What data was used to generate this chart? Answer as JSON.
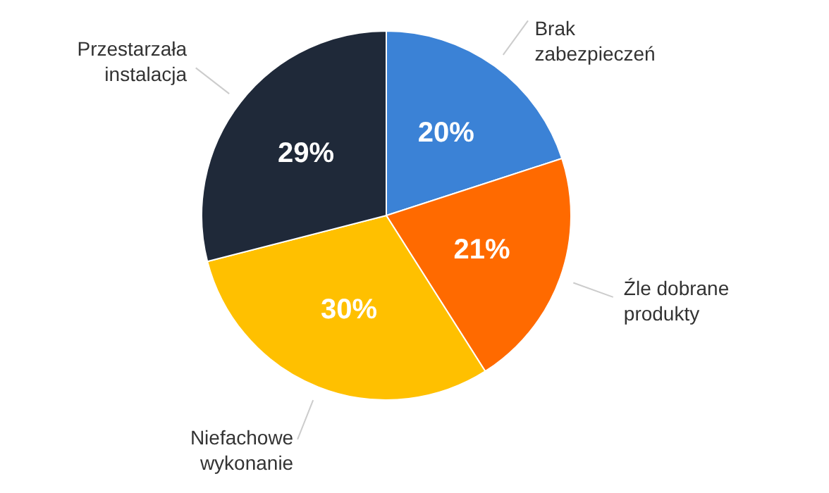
{
  "chart_data": {
    "type": "pie",
    "categories": [
      "Brak zabezpieczeń",
      "Źle dobrane produkty",
      "Niefachowe wykonanie",
      "Przestarzała instalacja"
    ],
    "values": [
      20,
      21,
      30,
      29
    ],
    "value_labels": [
      "20%",
      "21%",
      "30%",
      "29%"
    ],
    "colors": [
      "#3b82d6",
      "#ff6a00",
      "#ffc000",
      "#1f2939"
    ],
    "legend": false
  }
}
